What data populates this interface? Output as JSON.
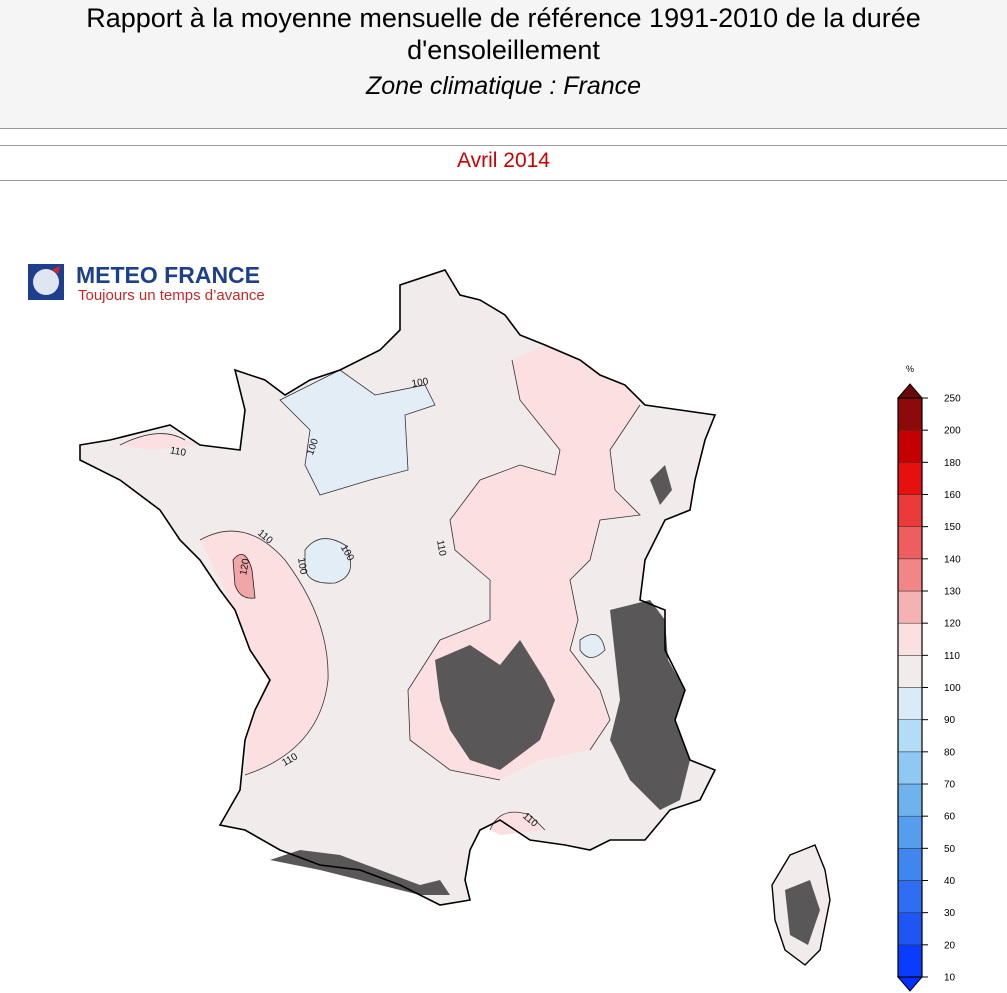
{
  "header": {
    "title": "Rapport à la moyenne mensuelle de référence 1991-2010 de la durée d'ensoleillement",
    "subtitle": "Zone climatique : France"
  },
  "period": "Avril 2014",
  "logo": {
    "name": "METEO FRANCE",
    "tagline": "Toujours un temps d’avance"
  },
  "map": {
    "contour_labels": [
      100,
      100,
      110,
      110,
      120,
      100,
      100,
      110,
      110,
      110
    ]
  },
  "legend": {
    "unit": "%",
    "ticks": [
      10,
      20,
      30,
      40,
      50,
      60,
      70,
      80,
      90,
      100,
      110,
      120,
      130,
      140,
      150,
      160,
      180,
      200,
      250
    ],
    "colors": [
      "#0a3cff",
      "#1f55f5",
      "#2f6ef2",
      "#3f86ef",
      "#559ded",
      "#6fb3ee",
      "#8fc8f2",
      "#b3dcf6",
      "#d8ebf7",
      "#f1ebec",
      "#fbe0e2",
      "#f5b2b3",
      "#f28585",
      "#ef5e5f",
      "#ec3a3a",
      "#e80f0f",
      "#c40000",
      "#8c0a0a"
    ],
    "over_color": "#6e0808",
    "under_color": "#0030ff"
  }
}
